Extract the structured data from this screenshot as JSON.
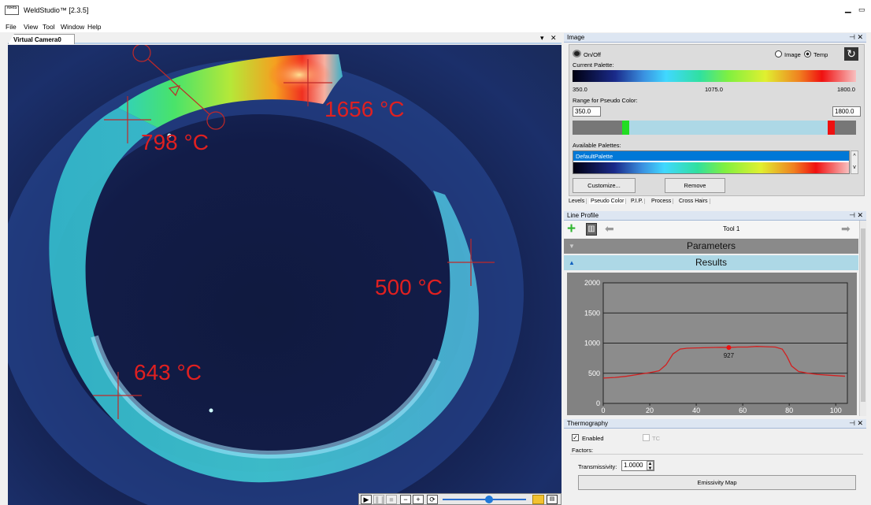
{
  "app": {
    "title": "WeldStudio™ [2.3.5]",
    "logo_text": "XIRIS"
  },
  "menu": [
    "File",
    "View",
    "Tool",
    "Window",
    "Help"
  ],
  "camera": {
    "tab_label": "Virtual Camera0",
    "labels": [
      {
        "name": "label-1656",
        "text": "1656 °C"
      },
      {
        "name": "label-798",
        "text": "798 °C"
      },
      {
        "name": "label-500",
        "text": "500 °C"
      },
      {
        "name": "label-643",
        "text": "643 °C"
      }
    ]
  },
  "image_panel": {
    "title": "Image",
    "onoff_label": "On/Off",
    "mode_image": "Image",
    "mode_temp": "Temp",
    "mode_selected": "Temp",
    "current_palette_label": "Current Palette:",
    "palette_ticks": [
      "350.0",
      "1075.0",
      "1800.0"
    ],
    "range_label": "Range for Pseudo Color:",
    "range_min": "350.0",
    "range_max": "1800.0",
    "available_label": "Available Palettes:",
    "palette_item": "DefaultPalette",
    "customize_label": "Customize...",
    "remove_label": "Remove",
    "tabs": [
      "Levels",
      "Pseudo Color",
      "P.I.P.",
      "Process",
      "Cross Hairs"
    ],
    "active_tab": "Pseudo Color"
  },
  "line_profile": {
    "title": "Line Profile",
    "tool_name": "Tool 1",
    "parameters_label": "Parameters",
    "results_label": "Results"
  },
  "chart_data": {
    "type": "line",
    "x": [
      0,
      5,
      10,
      15,
      20,
      24,
      27,
      30,
      33,
      36,
      40,
      45,
      50,
      54,
      58,
      62,
      66,
      70,
      74,
      77,
      79,
      81,
      84,
      88,
      92,
      96,
      100,
      104
    ],
    "y": [
      420,
      430,
      450,
      480,
      510,
      540,
      640,
      820,
      900,
      915,
      920,
      925,
      930,
      927,
      935,
      935,
      945,
      940,
      935,
      900,
      780,
      620,
      530,
      500,
      480,
      470,
      460,
      450
    ],
    "marker": {
      "x": 54,
      "y": 927,
      "label": "927"
    },
    "xlim": [
      0,
      105
    ],
    "ylim": [
      0,
      2000
    ],
    "x_ticks": [
      "0",
      "20",
      "40",
      "60",
      "80",
      "100"
    ],
    "y_ticks": [
      "0",
      "500",
      "1000",
      "1500",
      "2000"
    ],
    "grid": "horizontal",
    "line_color": "#d22020"
  },
  "thermography": {
    "title": "Thermography",
    "enabled_label": "Enabled",
    "enabled": true,
    "tc_label": "TC",
    "factors_label": "Factors:",
    "transmissivity_label": "Transmissivity:",
    "transmissivity_value": "1.0000",
    "emissivity_button": "Emissivity Map"
  },
  "colors": {
    "accent": "#0078d7",
    "label_red": "#e02020"
  }
}
